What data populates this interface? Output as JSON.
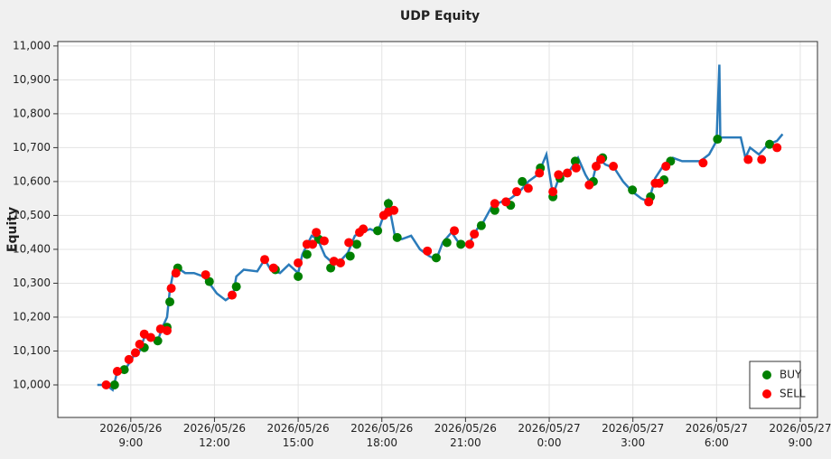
{
  "chart_data": {
    "type": "line",
    "title": "UDP Equity",
    "ylabel": "Equity",
    "xlim": [
      "2026-05-26 06:23",
      "2026-05-27 09:37"
    ],
    "xticks": [
      {
        "value": "2026-05-26 09:00",
        "label": "2026/05/26\n9:00"
      },
      {
        "value": "2026-05-26 12:00",
        "label": "2026/05/26\n12:00"
      },
      {
        "value": "2026-05-26 15:00",
        "label": "2026/05/26\n15:00"
      },
      {
        "value": "2026-05-26 18:00",
        "label": "2026/05/26\n18:00"
      },
      {
        "value": "2026-05-26 21:00",
        "label": "2026/05/26\n21:00"
      },
      {
        "value": "2026-05-27 00:00",
        "label": "2026/05/27\n0:00"
      },
      {
        "value": "2026-05-27 03:00",
        "label": "2026/05/27\n3:00"
      },
      {
        "value": "2026-05-27 06:00",
        "label": "2026/05/27\n6:00"
      },
      {
        "value": "2026-05-27 09:00",
        "label": "2026/05/27\n9:00"
      }
    ],
    "ylim": [
      9904,
      11013
    ],
    "yticks": [
      {
        "value": 10000,
        "label": "10,000"
      },
      {
        "value": 10100,
        "label": "10,100"
      },
      {
        "value": 10200,
        "label": "10,200"
      },
      {
        "value": 10300,
        "label": "10,300"
      },
      {
        "value": 10400,
        "label": "10,400"
      },
      {
        "value": 10500,
        "label": "10,500"
      },
      {
        "value": 10600,
        "label": "10,600"
      },
      {
        "value": 10700,
        "label": "10,700"
      },
      {
        "value": 10800,
        "label": "10,800"
      },
      {
        "value": 10900,
        "label": "10,900"
      },
      {
        "value": 11000,
        "label": "11,000"
      }
    ],
    "grid": true,
    "legend": "lower right",
    "series": [
      {
        "kind": "line",
        "color": "#2b7bba",
        "x": [
          "2026-05-26 07:48",
          "2026-05-26 08:07",
          "2026-05-26 08:21",
          "2026-05-26 08:31",
          "2026-05-26 08:50",
          "2026-05-26 09:06",
          "2026-05-26 09:19",
          "2026-05-26 09:29",
          "2026-05-26 09:45",
          "2026-05-26 09:58",
          "2026-05-26 10:08",
          "2026-05-26 10:18",
          "2026-05-26 10:24",
          "2026-05-26 10:31",
          "2026-05-26 10:41",
          "2026-05-26 10:57",
          "2026-05-26 11:16",
          "2026-05-26 11:36",
          "2026-05-26 11:49",
          "2026-05-26 12:05",
          "2026-05-26 12:24",
          "2026-05-26 12:40",
          "2026-05-26 12:47",
          "2026-05-26 13:03",
          "2026-05-26 13:32",
          "2026-05-26 13:48",
          "2026-05-26 14:01",
          "2026-05-26 14:21",
          "2026-05-26 14:40",
          "2026-05-26 15:00",
          "2026-05-26 15:09",
          "2026-05-26 15:29",
          "2026-05-26 15:42",
          "2026-05-26 15:58",
          "2026-05-26 16:14",
          "2026-05-26 16:27",
          "2026-05-26 16:47",
          "2026-05-26 17:02",
          "2026-05-26 17:16",
          "2026-05-26 17:35",
          "2026-05-26 17:51",
          "2026-05-26 18:04",
          "2026-05-26 18:14",
          "2026-05-26 18:28",
          "2026-05-26 18:43",
          "2026-05-26 19:03",
          "2026-05-26 19:22",
          "2026-05-26 19:42",
          "2026-05-26 19:57",
          "2026-05-26 20:11",
          "2026-05-26 20:30",
          "2026-05-26 20:50",
          "2026-05-26 21:09",
          "2026-05-26 21:25",
          "2026-05-26 21:38",
          "2026-05-26 21:58",
          "2026-05-26 22:17",
          "2026-05-26 22:37",
          "2026-05-26 22:56",
          "2026-05-26 23:15",
          "2026-05-26 23:35",
          "2026-05-26 23:45",
          "2026-05-26 23:54",
          "2026-05-27 00:08",
          "2026-05-27 00:23",
          "2026-05-27 00:43",
          "2026-05-27 01:02",
          "2026-05-27 01:18",
          "2026-05-27 01:31",
          "2026-05-27 01:45",
          "2026-05-27 02:01",
          "2026-05-27 02:20",
          "2026-05-27 02:39",
          "2026-05-27 02:59",
          "2026-05-27 03:18",
          "2026-05-27 03:34",
          "2026-05-27 03:48",
          "2026-05-27 04:07",
          "2026-05-27 04:26",
          "2026-05-27 04:46",
          "2026-05-27 05:05",
          "2026-05-27 05:25",
          "2026-05-27 05:44",
          "2026-05-27 06:00",
          "2026-05-27 06:06",
          "2026-05-27 06:08",
          "2026-05-27 06:52",
          "2026-05-27 07:02",
          "2026-05-27 07:12",
          "2026-05-27 07:31",
          "2026-05-27 07:51",
          "2026-05-27 08:10",
          "2026-05-27 08:22"
        ],
        "values": [
          10000,
          10000,
          9985,
          10040,
          10050,
          10085,
          10100,
          10140,
          10140,
          10130,
          10170,
          10200,
          10280,
          10330,
          10345,
          10330,
          10330,
          10320,
          10300,
          10270,
          10250,
          10265,
          10320,
          10340,
          10335,
          10370,
          10340,
          10330,
          10355,
          10330,
          10385,
          10440,
          10430,
          10380,
          10360,
          10360,
          10390,
          10440,
          10450,
          10460,
          10450,
          10500,
          10540,
          10440,
          10430,
          10440,
          10400,
          10380,
          10370,
          10420,
          10450,
          10410,
          10420,
          10460,
          10480,
          10530,
          10540,
          10550,
          10570,
          10600,
          10620,
          10650,
          10680,
          10560,
          10620,
          10630,
          10670,
          10620,
          10590,
          10670,
          10650,
          10640,
          10600,
          10570,
          10550,
          10540,
          10610,
          10650,
          10670,
          10660,
          10660,
          10660,
          10680,
          10720,
          10945,
          10730,
          10730,
          10670,
          10700,
          10680,
          10710,
          10720,
          10740
        ]
      },
      {
        "kind": "scatter",
        "name": "BUY",
        "color": "#008000",
        "x": [
          "2026-05-26 08:25",
          "2026-05-26 08:46",
          "2026-05-26 09:29",
          "2026-05-26 09:58",
          "2026-05-26 10:18",
          "2026-05-26 10:24",
          "2026-05-26 10:41",
          "2026-05-26 11:49",
          "2026-05-26 12:47",
          "2026-05-26 14:11",
          "2026-05-26 15:00",
          "2026-05-26 15:19",
          "2026-05-26 15:44",
          "2026-05-26 16:10",
          "2026-05-26 16:52",
          "2026-05-26 17:06",
          "2026-05-26 17:51",
          "2026-05-26 18:14",
          "2026-05-26 18:33",
          "2026-05-26 19:57",
          "2026-05-26 20:20",
          "2026-05-26 20:50",
          "2026-05-26 21:34",
          "2026-05-26 22:03",
          "2026-05-26 22:37",
          "2026-05-26 23:02",
          "2026-05-26 23:41",
          "2026-05-27 00:08",
          "2026-05-27 00:23",
          "2026-05-27 00:56",
          "2026-05-27 01:35",
          "2026-05-27 01:55",
          "2026-05-27 02:59",
          "2026-05-27 03:38",
          "2026-05-27 04:07",
          "2026-05-27 04:21",
          "2026-05-27 06:02",
          "2026-05-27 07:54"
        ],
        "values": [
          10000,
          10045,
          10110,
          10130,
          10170,
          10245,
          10345,
          10305,
          10290,
          10340,
          10320,
          10385,
          10430,
          10345,
          10380,
          10415,
          10455,
          10535,
          10435,
          10375,
          10420,
          10415,
          10470,
          10515,
          10530,
          10600,
          10640,
          10555,
          10610,
          10660,
          10600,
          10670,
          10575,
          10555,
          10605,
          10660,
          10725,
          10710
        ]
      },
      {
        "kind": "scatter",
        "name": "SELL",
        "color": "#ff0000",
        "x": [
          "2026-05-26 08:07",
          "2026-05-26 08:31",
          "2026-05-26 08:56",
          "2026-05-26 09:10",
          "2026-05-26 09:19",
          "2026-05-26 09:29",
          "2026-05-26 09:43",
          "2026-05-26 10:04",
          "2026-05-26 10:18",
          "2026-05-26 10:27",
          "2026-05-26 10:37",
          "2026-05-26 11:41",
          "2026-05-26 12:38",
          "2026-05-26 13:48",
          "2026-05-26 14:07",
          "2026-05-26 15:00",
          "2026-05-26 15:19",
          "2026-05-26 15:31",
          "2026-05-26 15:39",
          "2026-05-26 15:56",
          "2026-05-26 16:17",
          "2026-05-26 16:31",
          "2026-05-26 16:49",
          "2026-05-26 17:12",
          "2026-05-26 17:20",
          "2026-05-26 18:04",
          "2026-05-26 18:14",
          "2026-05-26 18:26",
          "2026-05-26 19:38",
          "2026-05-26 20:36",
          "2026-05-26 21:09",
          "2026-05-26 21:19",
          "2026-05-26 22:03",
          "2026-05-26 22:27",
          "2026-05-26 22:50",
          "2026-05-26 23:15",
          "2026-05-26 23:39",
          "2026-05-27 00:08",
          "2026-05-27 00:20",
          "2026-05-27 00:39",
          "2026-05-27 00:58",
          "2026-05-27 01:26",
          "2026-05-27 01:41",
          "2026-05-27 01:51",
          "2026-05-27 02:18",
          "2026-05-27 03:34",
          "2026-05-27 03:48",
          "2026-05-27 03:57",
          "2026-05-27 04:11",
          "2026-05-27 05:31",
          "2026-05-27 07:08",
          "2026-05-27 07:37",
          "2026-05-27 08:10"
        ],
        "values": [
          10000,
          10040,
          10075,
          10095,
          10120,
          10150,
          10140,
          10165,
          10160,
          10285,
          10330,
          10325,
          10265,
          10370,
          10345,
          10360,
          10415,
          10415,
          10450,
          10425,
          10365,
          10360,
          10420,
          10450,
          10460,
          10500,
          10510,
          10515,
          10395,
          10455,
          10415,
          10445,
          10535,
          10540,
          10570,
          10580,
          10625,
          10570,
          10620,
          10625,
          10640,
          10590,
          10645,
          10665,
          10645,
          10540,
          10595,
          10595,
          10645,
          10655,
          10665,
          10665,
          10700
        ]
      }
    ]
  }
}
